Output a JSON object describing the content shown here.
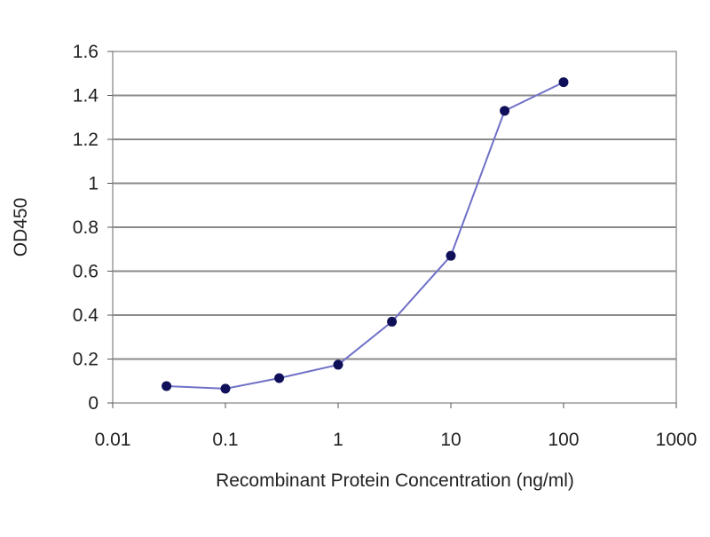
{
  "chart_data": {
    "type": "line",
    "title": "",
    "xlabel": "Recombinant Protein Concentration (ng/ml)",
    "ylabel": "OD450",
    "x_scale": "log",
    "xlim": [
      0.01,
      1000
    ],
    "ylim": [
      0,
      1.6
    ],
    "x_ticks": [
      0.01,
      0.1,
      1,
      10,
      100,
      1000
    ],
    "x_tick_labels": [
      "0.01",
      "0.1",
      "1",
      "10",
      "100",
      "1000"
    ],
    "y_ticks": [
      0,
      0.2,
      0.4,
      0.6,
      0.8,
      1,
      1.2,
      1.4,
      1.6
    ],
    "y_tick_labels": [
      "0",
      "0.2",
      "0.4",
      "0.6",
      "0.8",
      "1",
      "1.2",
      "1.4",
      "1.6"
    ],
    "grid": "horizontal",
    "legend": "none",
    "series": [
      {
        "x": [
          0.03,
          0.1,
          0.3,
          1,
          3,
          10,
          30,
          100
        ],
        "y": [
          0.077,
          0.065,
          0.113,
          0.174,
          0.37,
          0.67,
          1.33,
          1.46
        ],
        "line_color": "#7070c8",
        "marker_color": "#10105a"
      }
    ],
    "gridline_color": "#8a8a8a",
    "frame_color": "#9a9a9a"
  }
}
